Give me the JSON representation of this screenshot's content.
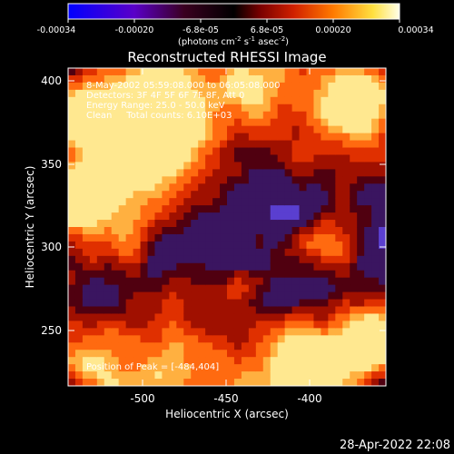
{
  "colorbar": {
    "ticks": [
      "-0.00034",
      "-0.00020",
      "-6.8e-05",
      "6.8e-05",
      "0.00020",
      "0.00034"
    ],
    "unit_main": "(photons cm",
    "unit_exp1": "-2",
    "unit_s": " s",
    "unit_exp2": "-1",
    "unit_asec": " asec",
    "unit_exp3": "-2",
    "unit_close": ")",
    "colors": [
      "#0000ff",
      "#5a00c8",
      "#3a0020",
      "#000000",
      "#7a0000",
      "#d02000",
      "#ff7a00",
      "#ffe040",
      "#ffffe8"
    ]
  },
  "title": "Reconstructed RHESSI Image",
  "info": {
    "line1": "8-May-2002 05:59:08.000 to 06:05:08.000",
    "line2": "Detectors: 3F 4F 5F 6F 7F 8F, Att 0",
    "line3": "Energy Range: 25.0 - 50.0 keV",
    "line4": "Clean     Total counts: 6.10E+03",
    "peak": "Position of Peak = [-484,404]"
  },
  "x_axis": {
    "label": "Heliocentric X (arcsec)",
    "ticks": [
      "-500",
      "-450",
      "-400"
    ],
    "range": [
      -545,
      -405
    ]
  },
  "y_axis": {
    "label": "Heliocentric Y (arcsec)",
    "ticks": [
      "400",
      "350",
      "300",
      "250"
    ],
    "range": [
      215,
      410
    ]
  },
  "timestamp": "28-Apr-2022 22:08"
}
